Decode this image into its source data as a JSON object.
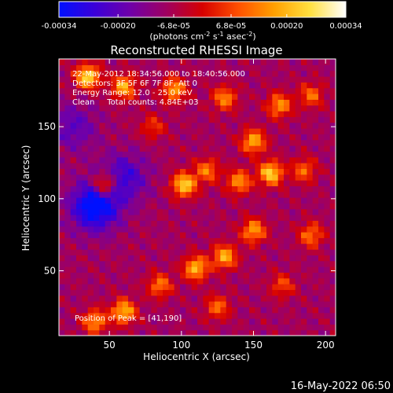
{
  "chart_data": {
    "type": "heatmap",
    "title": "Reconstructed RHESSI Image",
    "xlabel": "Heliocentric X (arcsec)",
    "ylabel": "Heliocentric Y (arcsec)",
    "xlim": [
      15,
      207
    ],
    "ylim": [
      5,
      197
    ],
    "x_ticks": [
      50,
      100,
      150,
      200
    ],
    "y_ticks": [
      50,
      100,
      150
    ],
    "colorbar": {
      "ticks": [
        "-0.00034",
        "-0.00020",
        "-6.8e-05",
        "6.8e-05",
        "0.00020",
        "0.00034"
      ],
      "tick_values": [
        -0.00034,
        -0.0002,
        -6.8e-05,
        6.8e-05,
        0.0002,
        0.00034
      ],
      "range": [
        -0.00034,
        0.00034
      ],
      "unit_label": "(photons cm",
      "unit_sup1": "-2",
      "unit_mid": " s",
      "unit_sup2": "-1",
      "unit_mid2": " asec",
      "unit_sup3": "-2",
      "unit_end": ")",
      "colormap": [
        "#0010ff",
        "#3b00d8",
        "#7000a8",
        "#a00060",
        "#d60000",
        "#ff5000",
        "#ffa000",
        "#ffe040",
        "#ffffff"
      ]
    },
    "annotations": {
      "time_range": "22-May-2012 18:34:56.000 to 18:40:56.000",
      "detectors": "Detectors: 3F 5F 6F 7F 8F, Att 0",
      "energy": "Energy Range: 12.0 - 25.0 keV",
      "clean": "Clean     Total counts: 4.84E+03",
      "peak": "Position of Peak = [41,190]"
    },
    "peak_position": [
      41,
      190
    ],
    "sources": [
      {
        "x": 35,
        "y": 185,
        "intensity": 1.0
      },
      {
        "x": 60,
        "y": 178,
        "intensity": 0.8
      },
      {
        "x": 95,
        "y": 176,
        "intensity": 0.75
      },
      {
        "x": 130,
        "y": 170,
        "intensity": 0.65
      },
      {
        "x": 168,
        "y": 165,
        "intensity": 0.7
      },
      {
        "x": 190,
        "y": 172,
        "intensity": 0.55
      },
      {
        "x": 150,
        "y": 140,
        "intensity": 0.8
      },
      {
        "x": 162,
        "y": 118,
        "intensity": 0.95
      },
      {
        "x": 140,
        "y": 112,
        "intensity": 0.7
      },
      {
        "x": 118,
        "y": 120,
        "intensity": 0.6
      },
      {
        "x": 102,
        "y": 110,
        "intensity": 0.95
      },
      {
        "x": 47,
        "y": 110,
        "intensity": 0.8
      },
      {
        "x": 185,
        "y": 120,
        "intensity": 0.55
      },
      {
        "x": 190,
        "y": 75,
        "intensity": 0.6
      },
      {
        "x": 150,
        "y": 78,
        "intensity": 0.75
      },
      {
        "x": 130,
        "y": 60,
        "intensity": 0.8
      },
      {
        "x": 110,
        "y": 52,
        "intensity": 0.85
      },
      {
        "x": 85,
        "y": 40,
        "intensity": 0.6
      },
      {
        "x": 60,
        "y": 22,
        "intensity": 0.85
      },
      {
        "x": 40,
        "y": 15,
        "intensity": 0.7
      },
      {
        "x": 125,
        "y": 25,
        "intensity": 0.55
      },
      {
        "x": 170,
        "y": 40,
        "intensity": 0.45
      },
      {
        "x": 80,
        "y": 150,
        "intensity": 0.4
      }
    ],
    "negative_regions": [
      {
        "x": 40,
        "y": 95,
        "intensity": 0.9
      },
      {
        "x": 60,
        "y": 115,
        "intensity": 0.5
      },
      {
        "x": 25,
        "y": 150,
        "intensity": 0.35
      }
    ]
  },
  "footer": {
    "date": "16-May-2022 06:50"
  }
}
